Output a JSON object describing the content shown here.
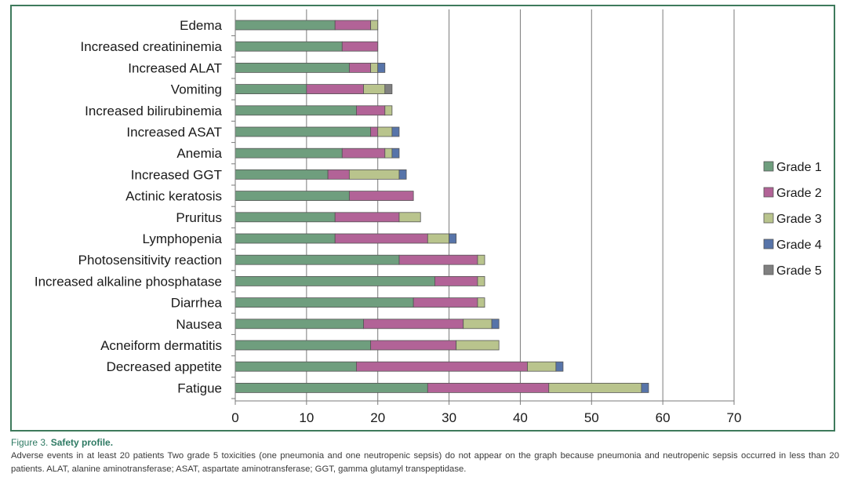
{
  "chart_data": {
    "type": "bar",
    "orientation": "horizontal",
    "stacked": true,
    "title": "",
    "xlabel": "",
    "ylabel": "",
    "xlim": [
      0,
      70
    ],
    "xticks": [
      0,
      10,
      20,
      30,
      40,
      50,
      60,
      70
    ],
    "grid": "vertical",
    "legend_position": "right",
    "categories": [
      "Edema",
      "Increased creatininemia",
      "Increased ALAT",
      "Vomiting",
      "Increased bilirubinemia",
      "Increased ASAT",
      "Anemia",
      "Increased GGT",
      "Actinic keratosis",
      "Pruritus",
      "Lymphopenia",
      "Photosensitivity reaction",
      "Increased alkaline phosphatase",
      "Diarrhea",
      "Nausea",
      "Acneiform dermatitis",
      "Decreased appetite",
      "Fatigue"
    ],
    "series": [
      {
        "name": "Grade 1",
        "color": "#6f9e7e",
        "values": [
          14,
          15,
          16,
          10,
          17,
          19,
          15,
          13,
          16,
          14,
          14,
          23,
          28,
          25,
          18,
          19,
          17,
          27
        ]
      },
      {
        "name": "Grade 2",
        "color": "#b26397",
        "values": [
          5,
          5,
          3,
          8,
          4,
          1,
          6,
          3,
          9,
          9,
          13,
          11,
          6,
          9,
          14,
          12,
          24,
          17
        ]
      },
      {
        "name": "Grade 3",
        "color": "#b9c48d",
        "values": [
          1,
          0,
          1,
          3,
          1,
          2,
          1,
          7,
          0,
          3,
          3,
          1,
          1,
          1,
          4,
          6,
          4,
          13
        ]
      },
      {
        "name": "Grade 4",
        "color": "#5774a9",
        "values": [
          0,
          0,
          1,
          0,
          0,
          1,
          1,
          1,
          0,
          0,
          1,
          0,
          0,
          0,
          1,
          0,
          1,
          1
        ]
      },
      {
        "name": "Grade 5",
        "color": "#808080",
        "values": [
          0,
          0,
          0,
          1,
          0,
          0,
          0,
          0,
          0,
          0,
          0,
          0,
          0,
          0,
          0,
          0,
          0,
          0
        ]
      }
    ]
  },
  "caption": {
    "figure_number": "Figure 3.",
    "figure_title": "Safety profile.",
    "text": "Adverse events in at least 20 patients Two grade 5 toxicities (one pneumonia and one neutropenic sepsis) do not appear on the graph because pneumonia and neutropenic sepsis occurred in less than 20 patients. ALAT, alanine aminotransferase; ASAT, aspartate aminotransferase; GGT, gamma glutamyl transpeptidase."
  }
}
